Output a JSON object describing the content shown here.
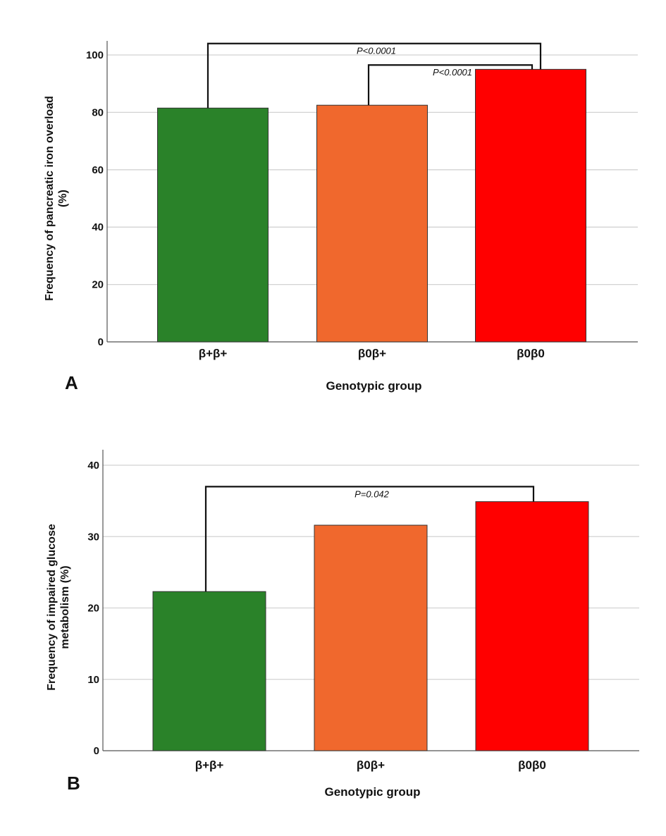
{
  "chart_data": [
    {
      "type": "bar",
      "panel_label": "A",
      "categories": [
        "β+β+",
        "β0β+",
        "β0β0"
      ],
      "values": [
        81.5,
        82.5,
        95
      ],
      "colors": [
        "#2a8229",
        "#f0682d",
        "#ff0000"
      ],
      "xlabel": "Genotypic group",
      "ylabel_lines": [
        "Frequency of pancreatic iron overload",
        "(%)"
      ],
      "ylim": [
        0,
        100
      ],
      "yticks": [
        "0",
        "20",
        "40",
        "60",
        "80",
        "100"
      ],
      "grid": true,
      "annotations": [
        {
          "from": 0,
          "to": 2,
          "text": "P<0.0001",
          "level": 104
        },
        {
          "from": 1,
          "to": 2,
          "text": "P<0.0001",
          "level": 96.5
        }
      ]
    },
    {
      "type": "bar",
      "panel_label": "B",
      "categories": [
        "β+β+",
        "β0β+",
        "β0β0"
      ],
      "values": [
        22.3,
        31.6,
        34.9
      ],
      "colors": [
        "#2a8229",
        "#f0682d",
        "#ff0000"
      ],
      "xlabel": "Genotypic group",
      "ylabel_lines": [
        "Frequency of impaired glucose",
        "metabolism (%)"
      ],
      "ylim": [
        0,
        40
      ],
      "yticks": [
        "0",
        "10",
        "20",
        "30",
        "40"
      ],
      "grid": true,
      "annotations": [
        {
          "from": 0,
          "to": 2,
          "text": "P=0.042",
          "level": 37
        }
      ]
    }
  ]
}
